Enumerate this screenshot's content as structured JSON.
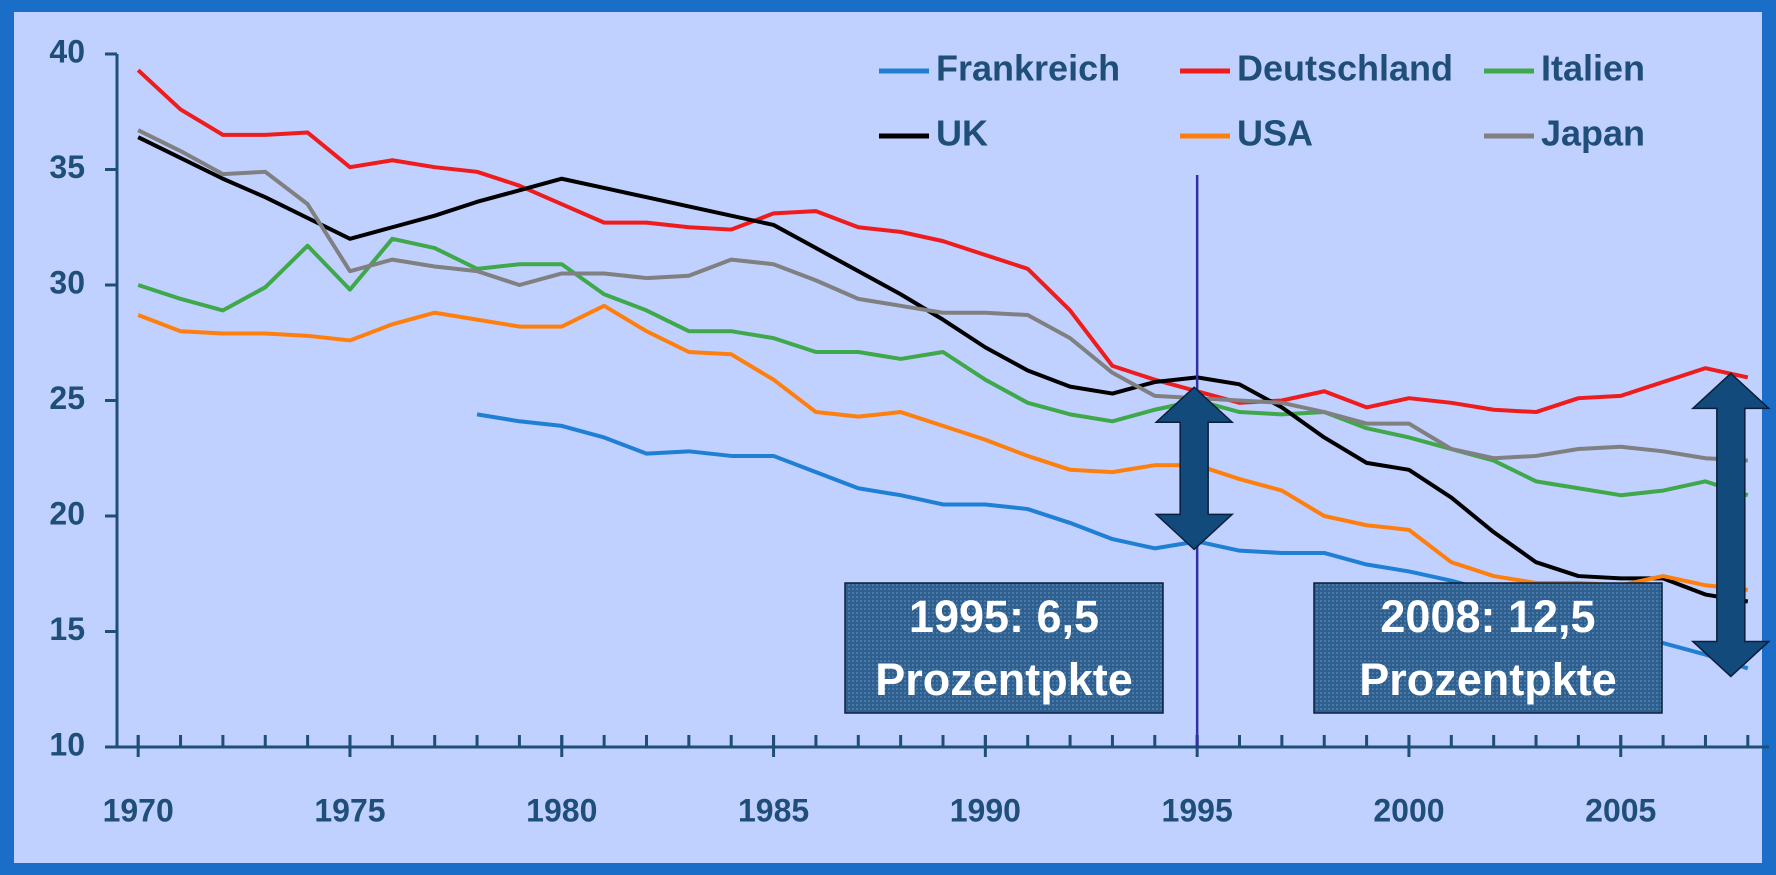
{
  "chart_data": {
    "type": "line",
    "x": [
      1970,
      1971,
      1972,
      1973,
      1974,
      1975,
      1976,
      1977,
      1978,
      1979,
      1980,
      1981,
      1982,
      1983,
      1984,
      1985,
      1986,
      1987,
      1988,
      1989,
      1990,
      1991,
      1992,
      1993,
      1994,
      1995,
      1996,
      1997,
      1998,
      1999,
      2000,
      2001,
      2002,
      2003,
      2004,
      2005,
      2006,
      2007,
      2008
    ],
    "series": [
      {
        "name": "Frankreich",
        "color": "#1f7fd4",
        "values": [
          null,
          null,
          null,
          null,
          null,
          null,
          null,
          null,
          24.4,
          24.1,
          23.9,
          23.4,
          22.7,
          22.8,
          22.6,
          22.6,
          21.9,
          21.2,
          20.9,
          20.5,
          20.5,
          20.3,
          19.7,
          19.0,
          18.6,
          18.9,
          18.5,
          18.4,
          18.4,
          17.9,
          17.6,
          17.2,
          16.7,
          16.2,
          15.6,
          15.0,
          14.5,
          14.0,
          13.4
        ]
      },
      {
        "name": "Deutschland",
        "color": "#ee1c1c",
        "values": [
          39.3,
          37.6,
          36.5,
          36.5,
          36.6,
          35.1,
          35.4,
          35.1,
          34.9,
          34.3,
          33.5,
          32.7,
          32.7,
          32.5,
          32.4,
          33.1,
          33.2,
          32.5,
          32.3,
          31.9,
          31.3,
          30.7,
          28.9,
          26.5,
          25.9,
          25.4,
          24.9,
          25.0,
          25.4,
          24.7,
          25.1,
          24.9,
          24.6,
          24.5,
          25.1,
          25.2,
          25.8,
          26.4,
          26.0
        ]
      },
      {
        "name": "Italien",
        "color": "#3fa84a",
        "values": [
          30.0,
          29.4,
          28.9,
          29.9,
          31.7,
          29.8,
          32.0,
          31.6,
          30.7,
          30.9,
          30.9,
          29.6,
          28.9,
          28.0,
          28.0,
          27.7,
          27.1,
          27.1,
          26.8,
          27.1,
          25.9,
          24.9,
          24.4,
          24.1,
          24.6,
          25.0,
          24.5,
          24.4,
          24.5,
          23.8,
          23.4,
          22.9,
          22.4,
          21.5,
          21.2,
          20.9,
          21.1,
          21.5,
          20.9
        ]
      },
      {
        "name": "UK",
        "color": "#000000",
        "values": [
          36.4,
          35.5,
          34.6,
          33.8,
          32.9,
          32.0,
          32.5,
          33.0,
          33.6,
          34.1,
          34.6,
          34.2,
          33.8,
          33.4,
          33.0,
          32.6,
          31.6,
          30.6,
          29.6,
          28.5,
          27.3,
          26.3,
          25.6,
          25.3,
          25.8,
          26.0,
          25.7,
          24.7,
          23.4,
          22.3,
          22.0,
          20.8,
          19.3,
          18.0,
          17.4,
          17.3,
          17.3,
          16.6,
          16.3
        ]
      },
      {
        "name": "USA",
        "color": "#ff7f0e",
        "values": [
          28.7,
          28.0,
          27.9,
          27.9,
          27.8,
          27.6,
          28.3,
          28.8,
          28.5,
          28.2,
          28.2,
          29.1,
          28.0,
          27.1,
          27.0,
          25.9,
          24.5,
          24.3,
          24.5,
          23.9,
          23.3,
          22.6,
          22.0,
          21.9,
          22.2,
          22.2,
          21.6,
          21.1,
          20.0,
          19.6,
          19.4,
          18.0,
          17.4,
          17.1,
          17.1,
          17.0,
          17.4,
          17.0,
          16.8
        ]
      },
      {
        "name": "Japan",
        "color": "#808080",
        "values": [
          36.7,
          35.8,
          34.8,
          34.9,
          33.5,
          30.6,
          31.1,
          30.8,
          30.6,
          30.0,
          30.5,
          30.5,
          30.3,
          30.4,
          31.1,
          30.9,
          30.2,
          29.4,
          29.1,
          28.8,
          28.8,
          28.7,
          27.7,
          26.2,
          25.2,
          25.1,
          25.0,
          24.9,
          24.5,
          24.0,
          24.0,
          22.9,
          22.5,
          22.6,
          22.9,
          23.0,
          22.8,
          22.5,
          22.4
        ]
      }
    ],
    "xlim": [
      1969.5,
      2008.5
    ],
    "xticks": [
      1970,
      1975,
      1980,
      1985,
      1990,
      1995,
      2000,
      2005
    ],
    "ylim": [
      10,
      40
    ],
    "yticks": [
      10,
      15,
      20,
      25,
      30,
      35,
      40
    ],
    "vline": 1995,
    "annotations": [
      {
        "x": 1995,
        "lines": [
          "1995: 6,5",
          "Prozentpkte"
        ]
      },
      {
        "x": 2008,
        "lines": [
          "2008: 12,5",
          "Prozentpkte"
        ]
      }
    ],
    "legend": "top-right"
  }
}
